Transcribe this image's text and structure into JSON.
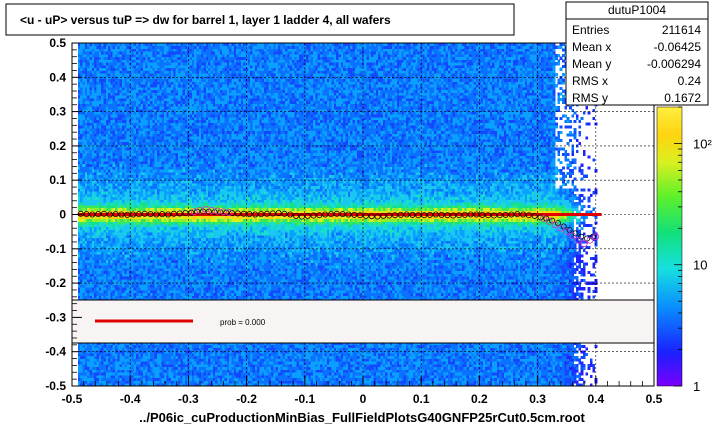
{
  "title": "<u - uP>       versus  tuP =>  dw for barrel 1, layer 1 ladder 4, all wafers",
  "footer": "../P06ic_cuProductionMinBias_FullFieldPlotsG40GNFP25rCut0.5cm.root",
  "stats": {
    "name": "dutuP1004",
    "rows": [
      {
        "label": "Entries",
        "value": "211614"
      },
      {
        "label": "Mean x",
        "value": "-0.06425"
      },
      {
        "label": "Mean y",
        "value": "-0.006294"
      },
      {
        "label": "RMS x",
        "value": "0.24"
      },
      {
        "label": "RMS y",
        "value": "0.1672"
      }
    ]
  },
  "legend": {
    "text": "prob = 0.000",
    "line_color": "#e00000"
  },
  "colors": {
    "fit_line": "#e00000",
    "profile_marker": "#000000",
    "profile_alt_marker": "#cc33cc"
  },
  "chart_data": {
    "type": "heatmap",
    "xlim": [
      -0.5,
      0.5
    ],
    "ylim": [
      -0.5,
      0.5
    ],
    "x_ticks": [
      -0.5,
      -0.4,
      -0.3,
      -0.2,
      -0.1,
      0,
      0.1,
      0.2,
      0.3,
      0.4,
      0.5
    ],
    "y_ticks": [
      -0.5,
      -0.4,
      -0.3,
      -0.2,
      -0.1,
      0,
      0.1,
      0.2,
      0.3,
      0.4,
      0.5
    ],
    "x_tick_labels": [
      "-0.5",
      "-0.4",
      "-0.3",
      "-0.2",
      "-0.1",
      "0",
      "0.1",
      "0.2",
      "0.3",
      "0.4",
      "0.5"
    ],
    "y_tick_labels": [
      "-0.5",
      "-0.4",
      "-0.3",
      "-0.2",
      "-0.1",
      "0",
      "0.1",
      "0.2",
      "0.3",
      "0.4",
      "0.5"
    ],
    "data_x_range": [
      -0.49,
      0.4
    ],
    "colorbar": {
      "scale": "log",
      "range": [
        1,
        200
      ],
      "tick_labels": [
        {
          "value": 100,
          "label": "10²"
        },
        {
          "value": 10,
          "label": "10"
        },
        {
          "value": 1,
          "label": "1"
        }
      ]
    },
    "fit_line": {
      "x": [
        -0.49,
        0.41
      ],
      "y": [
        0.0,
        0.0
      ]
    },
    "profile": {
      "x": [
        -0.485,
        -0.475,
        -0.465,
        -0.455,
        -0.445,
        -0.435,
        -0.425,
        -0.415,
        -0.405,
        -0.395,
        -0.385,
        -0.375,
        -0.365,
        -0.355,
        -0.345,
        -0.335,
        -0.325,
        -0.315,
        -0.305,
        -0.295,
        -0.285,
        -0.275,
        -0.265,
        -0.255,
        -0.245,
        -0.235,
        -0.225,
        -0.215,
        -0.205,
        -0.195,
        -0.185,
        -0.175,
        -0.165,
        -0.155,
        -0.145,
        -0.135,
        -0.125,
        -0.115,
        -0.105,
        -0.095,
        -0.085,
        -0.075,
        -0.065,
        -0.055,
        -0.045,
        -0.035,
        -0.025,
        -0.015,
        -0.005,
        0.005,
        0.015,
        0.025,
        0.035,
        0.045,
        0.055,
        0.065,
        0.075,
        0.085,
        0.095,
        0.105,
        0.115,
        0.125,
        0.135,
        0.145,
        0.155,
        0.165,
        0.175,
        0.185,
        0.195,
        0.205,
        0.215,
        0.225,
        0.235,
        0.245,
        0.255,
        0.265,
        0.275,
        0.285,
        0.295,
        0.305,
        0.315,
        0.325,
        0.335,
        0.345,
        0.355,
        0.365,
        0.375,
        0.385,
        0.395
      ],
      "y": [
        0.002,
        0.001,
        0.0,
        0.001,
        0.002,
        0.0,
        0.001,
        0.0,
        -0.001,
        0.0,
        0.001,
        0.002,
        0.001,
        0.0,
        0.001,
        0.0,
        0.002,
        0.003,
        0.004,
        0.005,
        0.008,
        0.009,
        0.008,
        0.007,
        0.006,
        0.005,
        0.004,
        0.003,
        0.002,
        0.001,
        0.0,
        0.001,
        0.002,
        0.003,
        0.004,
        0.002,
        0.0,
        -0.004,
        -0.006,
        -0.004,
        -0.003,
        -0.002,
        0.0,
        0.001,
        0.002,
        0.001,
        0.0,
        -0.001,
        -0.002,
        -0.004,
        -0.005,
        -0.006,
        -0.004,
        -0.003,
        -0.002,
        -0.001,
        0.0,
        -0.001,
        -0.002,
        -0.002,
        -0.001,
        0.0,
        -0.001,
        -0.002,
        -0.003,
        -0.002,
        -0.001,
        0.0,
        0.0,
        -0.001,
        -0.002,
        -0.003,
        -0.002,
        -0.001,
        0.0,
        0.001,
        0.0,
        -0.002,
        -0.004,
        -0.008,
        -0.012,
        -0.018,
        -0.025,
        -0.035,
        -0.045,
        -0.055,
        -0.065,
        -0.07,
        -0.065
      ]
    },
    "profile_alt": {
      "x": [
        -0.29,
        -0.28,
        -0.27,
        -0.26,
        -0.25,
        -0.24,
        -0.23,
        0.31,
        0.32,
        0.33,
        0.34,
        0.35,
        0.36,
        0.37,
        0.38,
        0.39,
        0.4
      ],
      "y": [
        0.008,
        0.012,
        0.015,
        0.012,
        0.01,
        0.008,
        0.006,
        -0.012,
        -0.02,
        -0.03,
        -0.04,
        -0.05,
        -0.062,
        -0.075,
        -0.085,
        -0.075,
        -0.065
      ]
    }
  }
}
